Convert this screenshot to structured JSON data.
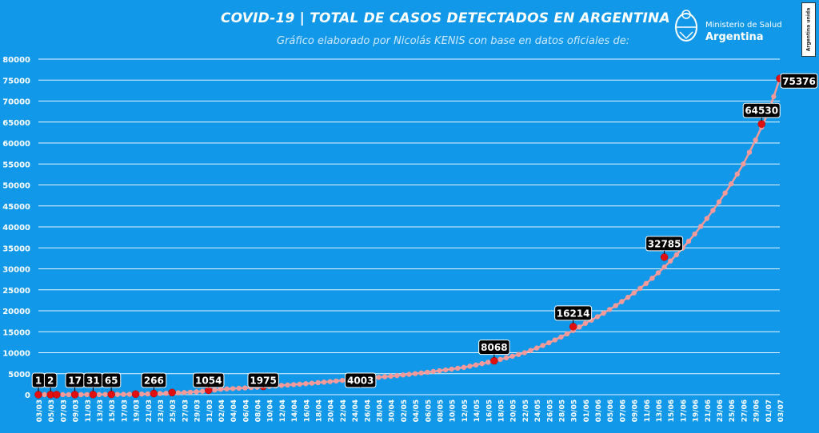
{
  "header": {
    "title": "COVID-19  |  TOTAL DE CASOS DETECTADOS EN ARGENTINA",
    "subtitle": "Gráfico elaborado por Nicolás KENIS con base en datos oficiales de:"
  },
  "logo": {
    "ministry": "Ministerio de Salud",
    "country": "Argentina"
  },
  "badge": {
    "text": "Argentina unida"
  },
  "colors": {
    "background": "#1198e8",
    "line": "#f49a9a",
    "marker": "#e01010",
    "label_bg": "#000000",
    "label_text": "#ffffff",
    "grid": "#ffffff"
  },
  "chart_data": {
    "type": "line",
    "title": "COVID-19 | TOTAL DE CASOS DETECTADOS EN ARGENTINA",
    "xlabel": "",
    "ylabel": "",
    "ylim": [
      0,
      80000
    ],
    "yticks": [
      0,
      5000,
      10000,
      15000,
      20000,
      25000,
      30000,
      35000,
      40000,
      45000,
      50000,
      55000,
      60000,
      65000,
      70000,
      75000,
      80000
    ],
    "grid": true,
    "x_tick_labels": [
      "03/03",
      "05/03",
      "07/03",
      "09/03",
      "11/03",
      "13/03",
      "15/03",
      "17/03",
      "19/03",
      "21/03",
      "23/03",
      "25/03",
      "27/03",
      "29/03",
      "31/03",
      "02/04",
      "04/04",
      "06/04",
      "08/04",
      "10/04",
      "12/04",
      "14/04",
      "16/04",
      "18/04",
      "20/04",
      "22/04",
      "24/04",
      "26/04",
      "28/04",
      "30/04",
      "02/05",
      "04/05",
      "06/05",
      "08/05",
      "10/05",
      "12/05",
      "14/05",
      "16/05",
      "18/05",
      "20/05",
      "22/05",
      "24/05",
      "26/05",
      "28/05",
      "30/05",
      "01/06",
      "03/06",
      "05/06",
      "07/06",
      "09/06",
      "11/06",
      "13/06",
      "15/06",
      "17/06",
      "19/06",
      "21/06",
      "23/06",
      "25/06",
      "27/06",
      "29/06",
      "01/07",
      "03/07"
    ],
    "anchor_points": [
      [
        "03/03",
        1
      ],
      [
        "13/03",
        31
      ],
      [
        "23/03",
        266
      ],
      [
        "02/04",
        1300
      ],
      [
        "12/04",
        2200
      ],
      [
        "22/04",
        3400
      ],
      [
        "02/05",
        4700
      ],
      [
        "12/05",
        6500
      ],
      [
        "22/05",
        10000
      ],
      [
        "01/06",
        17000
      ],
      [
        "11/06",
        26500
      ],
      [
        "21/06",
        42000
      ],
      [
        "27/06",
        55000
      ],
      [
        "01/07",
        67000
      ],
      [
        "03/07",
        75376
      ]
    ],
    "highlighted_points": [
      {
        "date": "03/03",
        "value": 1,
        "label": "1"
      },
      {
        "date": "05/03",
        "value": 2,
        "label": "2"
      },
      {
        "date": "06/03",
        "value": 2,
        "label": ""
      },
      {
        "date": "09/03",
        "value": 17,
        "label": "17"
      },
      {
        "date": "12/03",
        "value": 31,
        "label": "31"
      },
      {
        "date": "15/03",
        "value": 65,
        "label": "65"
      },
      {
        "date": "19/03",
        "value": 128,
        "label": ""
      },
      {
        "date": "22/03",
        "value": 266,
        "label": "266"
      },
      {
        "date": "25/03",
        "value": 502,
        "label": ""
      },
      {
        "date": "31/03",
        "value": 1054,
        "label": "1054"
      },
      {
        "date": "09/04",
        "value": 1975,
        "label": "1975"
      },
      {
        "date": "25/04",
        "value": 4003,
        "label": "4003"
      },
      {
        "date": "17/05",
        "value": 8068,
        "label": "8068"
      },
      {
        "date": "30/05",
        "value": 16214,
        "label": "16214"
      },
      {
        "date": "14/06",
        "value": 32785,
        "label": "32785"
      },
      {
        "date": "30/06",
        "value": 64530,
        "label": "64530"
      },
      {
        "date": "03/07",
        "value": 75376,
        "label": "75376"
      }
    ]
  }
}
